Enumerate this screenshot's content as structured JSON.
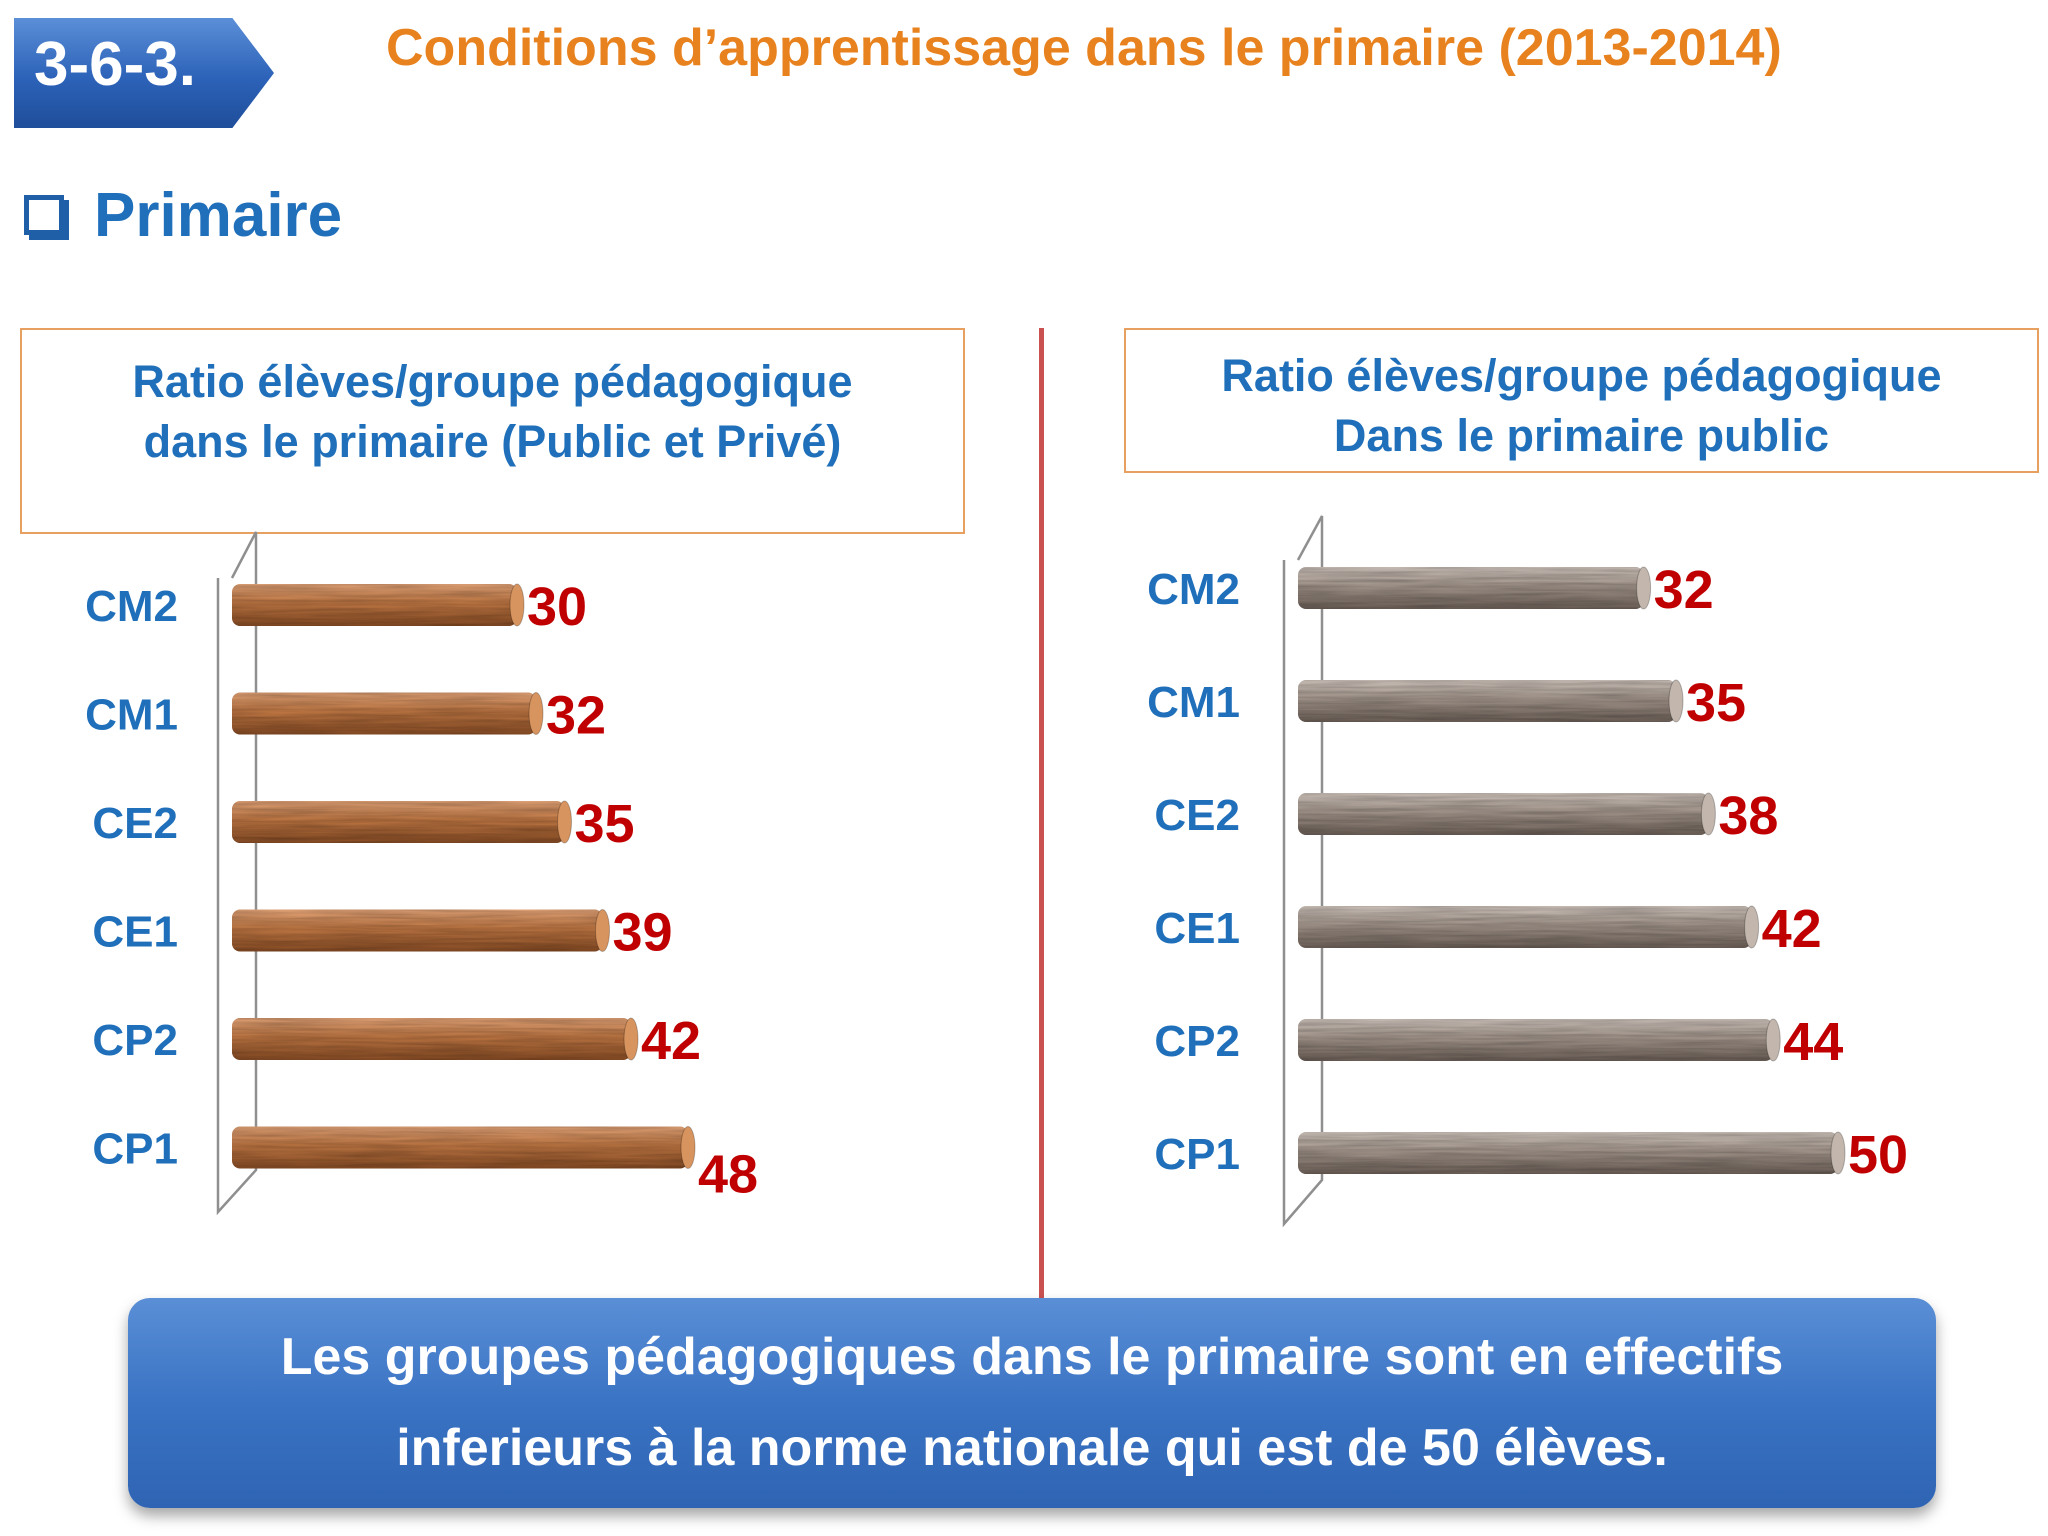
{
  "header": {
    "badge": "3-6-3.",
    "title": "Conditions d’apprentissage dans le primaire (2013-2014)"
  },
  "section": {
    "title": "Primaire"
  },
  "colors": {
    "left_bar": "#c47a45",
    "right_bar": "#a89a90",
    "value_label": "#c00000",
    "category_label": "#1f6fba"
  },
  "chart_data": [
    {
      "type": "bar",
      "orientation": "horizontal",
      "title": "Ratio élèves/groupe pédagogique dans le primaire (Public et Privé)",
      "title_lines": [
        "Ratio élèves/groupe pédagogique",
        "dans le primaire (Public et Privé)"
      ],
      "categories": [
        "CM2",
        "CM1",
        "CE2",
        "CE1",
        "CP2",
        "CP1"
      ],
      "values": [
        30,
        32,
        35,
        39,
        42,
        48
      ],
      "value_labels": [
        "30",
        "32",
        "35",
        "39",
        "42",
        "48"
      ],
      "grid": false
    },
    {
      "type": "bar",
      "orientation": "horizontal",
      "title": "Ratio élèves/groupe pédagogique Dans le primaire public",
      "title_lines": [
        "Ratio élèves/groupe pédagogique",
        "Dans le primaire  public"
      ],
      "categories": [
        "CM2",
        "CM1",
        "CE2",
        "CE1",
        "CP2",
        "CP1"
      ],
      "values": [
        32,
        35,
        38,
        42,
        44,
        50
      ],
      "value_labels": [
        "32",
        "35",
        "38",
        "42",
        "44",
        "50"
      ],
      "grid": false
    }
  ],
  "summary": {
    "line1": "Les groupes pédagogiques dans le primaire sont en effectifs",
    "line2": "inferieurs à la norme nationale qui est de 50 élèves."
  }
}
